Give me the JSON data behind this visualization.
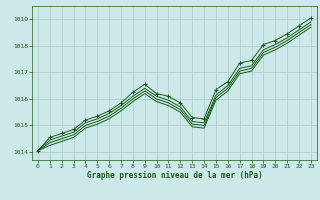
{
  "bg_color": "#cce8e8",
  "grid_color": "#aacccc",
  "line_color": "#1a5c1a",
  "xlabel": "Graphe pression niveau de la mer (hPa)",
  "xlabel_color": "#1a5c1a",
  "ylim": [
    1013.7,
    1019.5
  ],
  "xlim": [
    -0.5,
    23.5
  ],
  "yticks": [
    1014,
    1015,
    1016,
    1017,
    1018,
    1019
  ],
  "xticks": [
    0,
    1,
    2,
    3,
    4,
    5,
    6,
    7,
    8,
    9,
    10,
    11,
    12,
    13,
    14,
    15,
    16,
    17,
    18,
    19,
    20,
    21,
    22,
    23
  ],
  "series": {
    "line1": {
      "x": [
        0,
        1,
        2,
        3,
        4,
        5,
        6,
        7,
        8,
        9,
        10,
        11,
        12,
        13,
        14,
        15,
        16,
        17,
        18,
        19,
        20,
        21,
        22,
        23
      ],
      "y": [
        1014.05,
        1014.55,
        1014.7,
        1014.85,
        1015.2,
        1015.35,
        1015.55,
        1015.85,
        1016.25,
        1016.55,
        1016.2,
        1016.1,
        1015.85,
        1015.3,
        1015.25,
        1016.35,
        1016.65,
        1017.35,
        1017.45,
        1018.05,
        1018.2,
        1018.45,
        1018.75,
        1019.05
      ],
      "marker": "+"
    },
    "line2": {
      "x": [
        0,
        1,
        2,
        3,
        4,
        5,
        6,
        7,
        8,
        9,
        10,
        11,
        12,
        13,
        14,
        15,
        16,
        17,
        18,
        19,
        20,
        21,
        22,
        23
      ],
      "y": [
        1014.05,
        1014.45,
        1014.6,
        1014.75,
        1015.1,
        1015.25,
        1015.45,
        1015.75,
        1016.1,
        1016.4,
        1016.1,
        1015.95,
        1015.7,
        1015.15,
        1015.1,
        1016.15,
        1016.5,
        1017.15,
        1017.25,
        1017.85,
        1018.05,
        1018.3,
        1018.6,
        1018.9
      ]
    },
    "line3": {
      "x": [
        0,
        1,
        2,
        3,
        4,
        5,
        6,
        7,
        8,
        9,
        10,
        11,
        12,
        13,
        14,
        15,
        16,
        17,
        18,
        19,
        20,
        21,
        22,
        23
      ],
      "y": [
        1014.05,
        1014.35,
        1014.5,
        1014.65,
        1015.0,
        1015.15,
        1015.35,
        1015.65,
        1016.0,
        1016.3,
        1016.0,
        1015.85,
        1015.6,
        1015.05,
        1015.0,
        1016.05,
        1016.4,
        1017.05,
        1017.15,
        1017.75,
        1017.95,
        1018.2,
        1018.5,
        1018.8
      ]
    },
    "line4": {
      "x": [
        0,
        1,
        2,
        3,
        4,
        5,
        6,
        7,
        8,
        9,
        10,
        11,
        12,
        13,
        14,
        15,
        16,
        17,
        18,
        19,
        20,
        21,
        22,
        23
      ],
      "y": [
        1014.05,
        1014.25,
        1014.4,
        1014.55,
        1014.9,
        1015.05,
        1015.25,
        1015.55,
        1015.9,
        1016.2,
        1015.9,
        1015.75,
        1015.5,
        1014.95,
        1014.9,
        1015.95,
        1016.3,
        1016.95,
        1017.05,
        1017.65,
        1017.85,
        1018.1,
        1018.4,
        1018.7
      ]
    }
  },
  "tick_fontsize": 4.5,
  "xlabel_fontsize": 5.5
}
